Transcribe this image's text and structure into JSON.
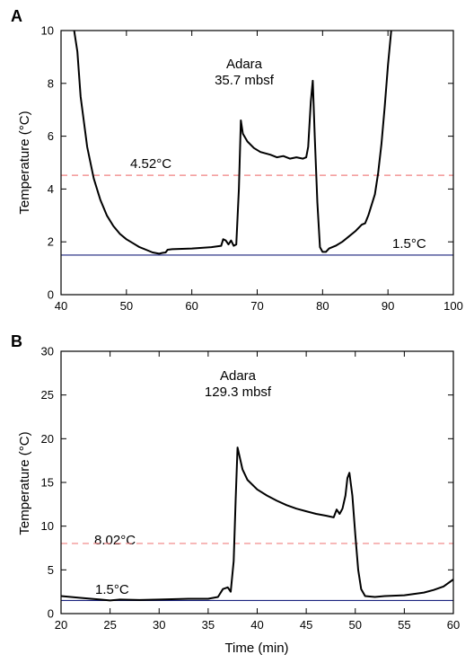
{
  "chart_data": [
    {
      "type": "line",
      "panel_label": "A",
      "annotation_lines": [
        "Adara",
        "35.7 mbsf"
      ],
      "xlabel": "",
      "ylabel": "Temperature (°C)",
      "xlim": [
        40,
        100
      ],
      "ylim": [
        0,
        10
      ],
      "xticks": [
        40,
        50,
        60,
        70,
        80,
        90,
        100
      ],
      "yticks": [
        0,
        2,
        4,
        6,
        8,
        10
      ],
      "grid": false,
      "reference_lines": [
        {
          "y": 4.52,
          "label": "4.52°C",
          "color": "#f08080",
          "style": "dashed"
        },
        {
          "y": 1.5,
          "label": "1.5°C",
          "color": "#1a237e",
          "style": "solid"
        }
      ],
      "series": [
        {
          "color": "#000000",
          "x": [
            42.0,
            42.5,
            43.0,
            44.0,
            45.0,
            46.0,
            47.0,
            48.0,
            49.0,
            50.0,
            51.0,
            52.0,
            53.0,
            54.0,
            55.0,
            55.5,
            56.0,
            56.3,
            57.0,
            60.0,
            63.0,
            64.5,
            64.8,
            65.2,
            65.6,
            66.0,
            66.4,
            66.8,
            67.2,
            67.5,
            67.8,
            68.5,
            69.5,
            70.5,
            72.0,
            73.0,
            74.0,
            75.0,
            76.0,
            77.0,
            77.5,
            77.8,
            78.2,
            78.5,
            78.8,
            79.2,
            79.6,
            80.0,
            80.5,
            81.0,
            82.0,
            83.0,
            84.0,
            85.0,
            86.0,
            86.5,
            87.0,
            88.0,
            88.5,
            89.0,
            89.5,
            90.0,
            90.5
          ],
          "values": [
            10.0,
            9.2,
            7.5,
            5.6,
            4.4,
            3.6,
            3.0,
            2.6,
            2.3,
            2.1,
            1.95,
            1.8,
            1.7,
            1.6,
            1.55,
            1.58,
            1.6,
            1.7,
            1.72,
            1.75,
            1.8,
            1.85,
            2.1,
            2.05,
            1.9,
            2.05,
            1.85,
            1.9,
            4.0,
            6.6,
            6.1,
            5.8,
            5.55,
            5.4,
            5.3,
            5.2,
            5.25,
            5.15,
            5.2,
            5.15,
            5.2,
            5.6,
            7.3,
            8.1,
            6.0,
            3.5,
            1.8,
            1.62,
            1.62,
            1.75,
            1.85,
            2.0,
            2.2,
            2.4,
            2.65,
            2.7,
            3.0,
            3.8,
            4.6,
            5.7,
            7.1,
            8.7,
            10.0
          ]
        }
      ]
    },
    {
      "type": "line",
      "panel_label": "B",
      "annotation_lines": [
        "Adara",
        "129.3 mbsf"
      ],
      "xlabel": "Time (min)",
      "ylabel": "Temperature (°C)",
      "xlim": [
        20,
        60
      ],
      "ylim": [
        0,
        30
      ],
      "xticks": [
        20,
        25,
        30,
        35,
        40,
        45,
        50,
        55,
        60
      ],
      "yticks": [
        0,
        5,
        10,
        15,
        20,
        25,
        30
      ],
      "grid": false,
      "reference_lines": [
        {
          "y": 8.02,
          "label": "8.02°C",
          "color": "#f08080",
          "style": "dashed"
        },
        {
          "y": 1.5,
          "label": "1.5°C",
          "color": "#1a237e",
          "style": "solid"
        }
      ],
      "series": [
        {
          "color": "#000000",
          "x": [
            20.0,
            22.0,
            24.0,
            25.0,
            26.0,
            28.0,
            30.0,
            33.0,
            35.0,
            36.0,
            36.5,
            37.0,
            37.3,
            37.6,
            37.8,
            38.0,
            38.5,
            39.0,
            40.0,
            41.0,
            42.0,
            43.0,
            44.0,
            45.0,
            46.0,
            47.0,
            47.8,
            48.1,
            48.4,
            48.7,
            49.0,
            49.2,
            49.4,
            49.7,
            50.0,
            50.3,
            50.6,
            51.0,
            52.0,
            53.0,
            55.0,
            57.0,
            58.0,
            59.0,
            60.0
          ],
          "values": [
            2.0,
            1.8,
            1.6,
            1.5,
            1.6,
            1.55,
            1.6,
            1.7,
            1.7,
            1.9,
            2.8,
            3.0,
            2.5,
            6.0,
            13.0,
            19.0,
            16.5,
            15.3,
            14.2,
            13.5,
            12.9,
            12.4,
            12.0,
            11.7,
            11.4,
            11.2,
            11.0,
            11.9,
            11.4,
            12.0,
            13.5,
            15.5,
            16.1,
            13.5,
            9.0,
            5.0,
            2.8,
            2.0,
            1.9,
            2.0,
            2.1,
            2.4,
            2.7,
            3.1,
            3.9
          ]
        }
      ]
    }
  ]
}
